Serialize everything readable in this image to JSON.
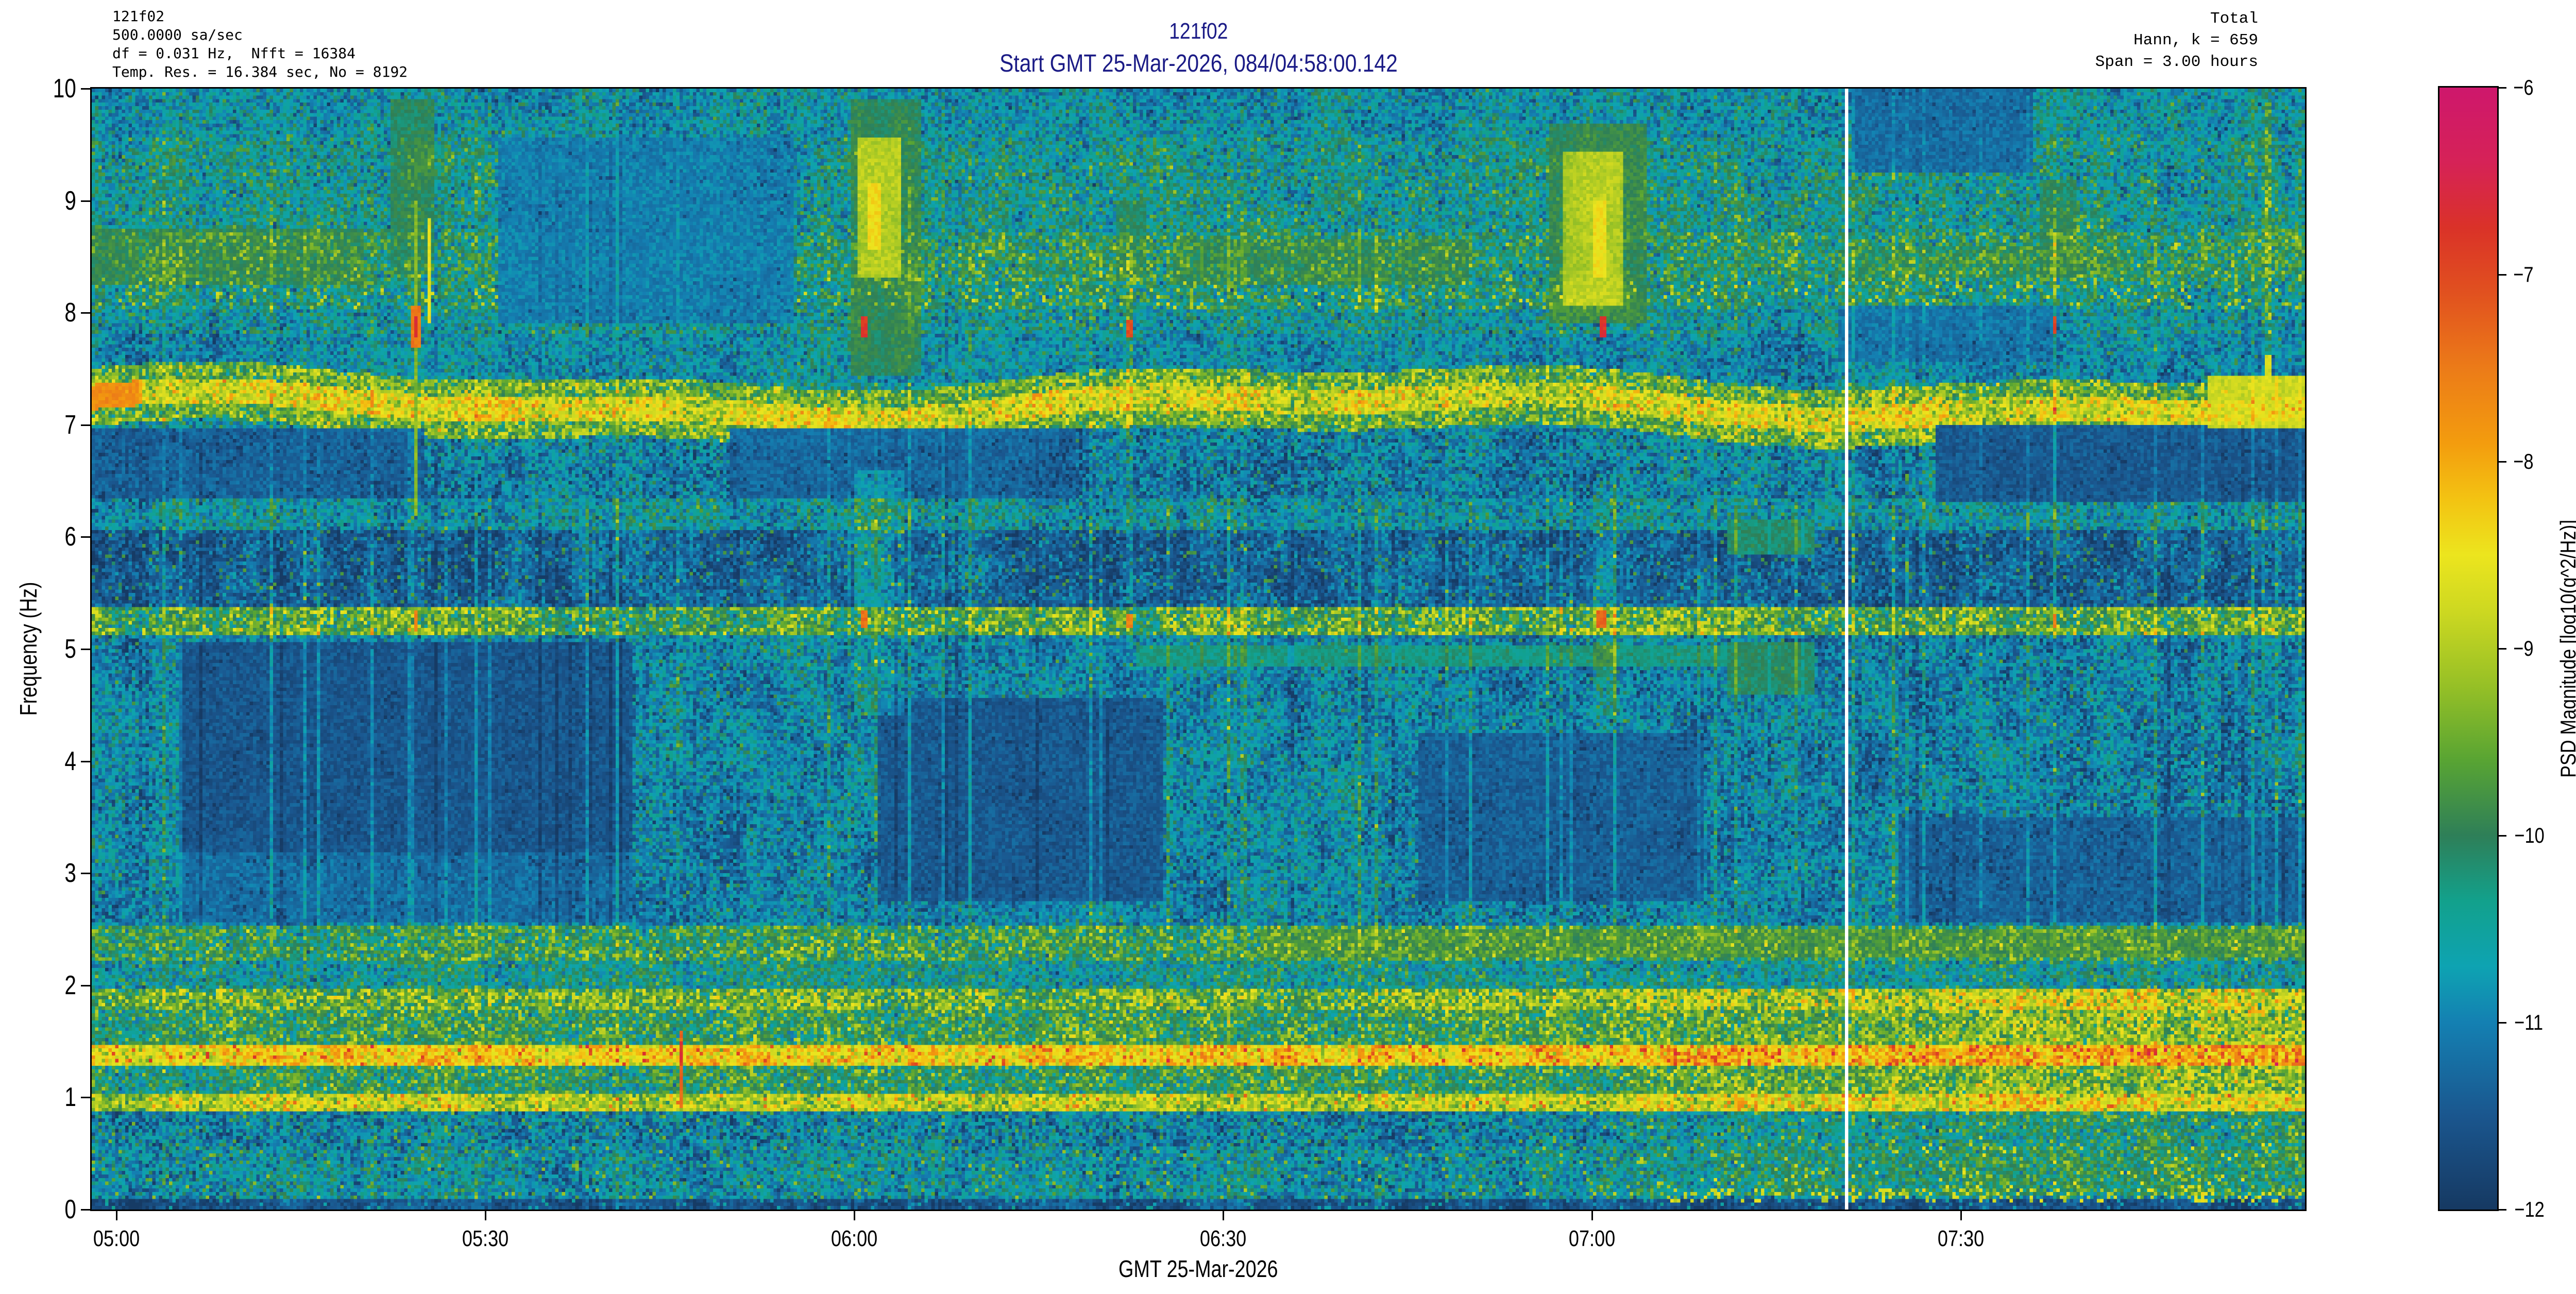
{
  "header_left": {
    "text": "121f02\n500.0000 sa/sec\ndf = 0.031 Hz,  Nfft = 16384\nTemp. Res. = 16.384 sec, No = 8192"
  },
  "header_right": {
    "text": "Total\nHann, k = 659\nSpan = 3.00 hours"
  },
  "title": {
    "line1": "121f02",
    "line2": "Start GMT 25-Mar-2026, 084/04:58:00.142",
    "color": "#1b1b86"
  },
  "axes": {
    "xlabel": "GMT 25-Mar-2026",
    "ylabel": "Frequency (Hz)",
    "x_ticks": [
      {
        "label": "05:00",
        "t": 2
      },
      {
        "label": "05:30",
        "t": 32
      },
      {
        "label": "06:00",
        "t": 62
      },
      {
        "label": "06:30",
        "t": 92
      },
      {
        "label": "07:00",
        "t": 122
      },
      {
        "label": "07:30",
        "t": 152
      }
    ],
    "y_ticks": [
      {
        "label": "0",
        "f": 0
      },
      {
        "label": "1",
        "f": 1
      },
      {
        "label": "2",
        "f": 2
      },
      {
        "label": "3",
        "f": 3
      },
      {
        "label": "4",
        "f": 4
      },
      {
        "label": "5",
        "f": 5
      },
      {
        "label": "6",
        "f": 6
      },
      {
        "label": "7",
        "f": 7
      },
      {
        "label": "8",
        "f": 8
      },
      {
        "label": "9",
        "f": 9
      },
      {
        "label": "10",
        "f": 10
      }
    ],
    "span_minutes": 180
  },
  "colorbar": {
    "label": "PSD Magnitude [log10(g^2/Hz)]",
    "vmin": -12,
    "vmax": -6,
    "ticks": [
      {
        "label": "−6",
        "v": -6
      },
      {
        "label": "−7",
        "v": -7
      },
      {
        "label": "−8",
        "v": -8
      },
      {
        "label": "−9",
        "v": -9
      },
      {
        "label": "−10",
        "v": -10
      },
      {
        "label": "−11",
        "v": -11
      },
      {
        "label": "−12",
        "v": -12
      }
    ],
    "stops": [
      [
        -12.0,
        "#163962"
      ],
      [
        -11.5,
        "#1a568e"
      ],
      [
        -11.0,
        "#1480b2"
      ],
      [
        -10.7,
        "#0ea3b2"
      ],
      [
        -10.35,
        "#12a18c"
      ],
      [
        -10.0,
        "#2e7f58"
      ],
      [
        -9.6,
        "#58a433"
      ],
      [
        -9.2,
        "#96c026"
      ],
      [
        -8.8,
        "#cdd821"
      ],
      [
        -8.5,
        "#ece51e"
      ],
      [
        -8.2,
        "#f3c312"
      ],
      [
        -7.9,
        "#f39c0e"
      ],
      [
        -7.5,
        "#ec7b18"
      ],
      [
        -7.1,
        "#e1511f"
      ],
      [
        -6.75,
        "#da3228"
      ],
      [
        -6.4,
        "#d62257"
      ],
      [
        -6.0,
        "#ce176c"
      ]
    ]
  },
  "chart_data": {
    "type": "heatmap",
    "title": "121f02",
    "subtitle": "Start GMT 25-Mar-2026, 084/04:58:00.142",
    "xlabel": "GMT 25-Mar-2026",
    "ylabel": "Frequency (Hz)",
    "x_start_gmt": "084/04:58:00.142",
    "x_span_hours": 3.0,
    "ylim": [
      0,
      10
    ],
    "clim": [
      -12,
      -6
    ],
    "colorbar_label": "PSD Magnitude [log10(g^2/Hz)]",
    "sample_rate_label": "500.0000 sa/sec",
    "df_hz": 0.031,
    "nfft": 16384,
    "temporal_res_sec": 16.384,
    "no_overlap": 8192,
    "window": "Hann",
    "k_averages": 659,
    "n_time_bins": 659,
    "n_freq_bins": 320,
    "gen": {
      "seed": 1337,
      "bands": [
        [
          0.0,
          0.1,
          -11.6,
          0.2,
          0.06,
          -10.6
        ],
        [
          0.1,
          0.55,
          -10.75,
          0.45,
          0.03,
          -9.4
        ],
        [
          0.55,
          0.86,
          -10.95,
          0.5,
          0.02,
          -9.6
        ],
        [
          0.86,
          1.03,
          -8.95,
          0.45,
          0.025,
          -7.5
        ],
        [
          1.03,
          1.27,
          -10.05,
          0.5,
          0.012,
          -9.0
        ],
        [
          1.27,
          1.47,
          -8.35,
          0.4,
          0.05,
          -6.95
        ],
        [
          1.47,
          1.77,
          -9.95,
          0.5,
          0.02,
          -9.0
        ],
        [
          1.77,
          1.98,
          -9.5,
          0.55,
          0.05,
          -8.7
        ],
        [
          1.98,
          2.22,
          -10.45,
          0.45,
          0.012,
          -9.5
        ],
        [
          2.22,
          2.52,
          -9.95,
          0.5,
          0.03,
          -9.2
        ],
        [
          2.52,
          5.12,
          -10.95,
          0.4,
          0.012,
          -9.8
        ],
        [
          5.12,
          5.38,
          -9.45,
          0.5,
          0.06,
          -8.4
        ],
        [
          5.38,
          6.06,
          -11.35,
          0.32,
          0.045,
          -9.9
        ],
        [
          6.06,
          6.33,
          -10.65,
          0.42,
          0.02,
          -9.9
        ],
        [
          6.33,
          6.98,
          -11.0,
          0.45,
          0.012,
          -10.0
        ],
        [
          6.98,
          7.38,
          -10.55,
          0.45,
          0.02,
          -9.7
        ],
        [
          7.38,
          7.8,
          -10.85,
          0.38,
          0.012,
          -9.9
        ],
        [
          7.8,
          8.02,
          -10.6,
          0.45,
          0.02,
          -9.8
        ],
        [
          8.02,
          8.28,
          -10.3,
          0.5,
          0.045,
          -8.9
        ],
        [
          8.28,
          8.72,
          -10.15,
          0.5,
          0.06,
          -9.6
        ],
        [
          8.72,
          9.55,
          -10.5,
          0.45,
          0.05,
          -9.8
        ],
        [
          9.55,
          10.01,
          -10.75,
          0.4,
          0.02,
          -10.0
        ]
      ],
      "seven_band": {
        "fc": 7.17,
        "a1": 0.09,
        "p1": 95,
        "ph": 15,
        "a2": 0.05,
        "p2": 37,
        "hc": 0.11,
        "hf": 0.26,
        "core": -8.6,
        "cs": 0.45,
        "fringe": -9.5,
        "fs": 0.5,
        "orange_t": 4,
        "orange_v": -7.7
      },
      "blocks": [
        {
          "t0": 7,
          "t1": 44,
          "f0": 3.2,
          "f1": 5.05,
          "m": "min",
          "v": -11.5
        },
        {
          "t0": 7,
          "t1": 44,
          "f0": 2.55,
          "f1": 3.2,
          "m": "min",
          "v": -11.15
        },
        {
          "t0": 64,
          "t1": 87,
          "f0": 2.75,
          "f1": 4.55,
          "m": "min",
          "v": -11.45
        },
        {
          "t0": 108,
          "t1": 131,
          "f0": 2.75,
          "f1": 4.25,
          "m": "min",
          "v": -11.35
        },
        {
          "t0": 147,
          "t1": 180,
          "f0": 2.55,
          "f1": 3.5,
          "m": "min",
          "v": -11.3
        },
        {
          "t0": 33,
          "t1": 57,
          "f0": 7.9,
          "f1": 9.55,
          "m": "min",
          "v": -11.0
        },
        {
          "t0": 150,
          "t1": 180,
          "f0": 6.3,
          "f1": 7.0,
          "m": "min",
          "v": -11.45
        },
        {
          "t0": 0,
          "t1": 27,
          "f0": 6.33,
          "f1": 6.98,
          "m": "min",
          "v": -11.3
        },
        {
          "t0": 52,
          "t1": 80,
          "f0": 6.33,
          "f1": 6.98,
          "m": "min",
          "v": -11.25
        },
        {
          "t0": 143,
          "t1": 158,
          "f0": 9.25,
          "f1": 10.0,
          "m": "min",
          "v": -11.2
        },
        {
          "t0": 142,
          "t1": 160,
          "f0": 7.55,
          "f1": 8.05,
          "m": "min",
          "v": -11.1
        },
        {
          "t0": 0,
          "t1": 22,
          "f0": 8.25,
          "f1": 8.75,
          "m": "max",
          "v": -10.0
        },
        {
          "t0": 88,
          "t1": 112,
          "f0": 8.25,
          "f1": 8.65,
          "m": "max",
          "v": -10.05
        },
        {
          "t0": 142,
          "t1": 166,
          "f0": 8.3,
          "f1": 8.6,
          "m": "max",
          "v": -10.2
        },
        {
          "t0": 85,
          "t1": 135,
          "f0": 4.85,
          "f1": 5.02,
          "m": "max",
          "v": -10.3
        },
        {
          "t0": 95,
          "t1": 180,
          "f0": 2.24,
          "f1": 2.5,
          "m": "max",
          "v": -9.85
        },
        {
          "t0": 133,
          "t1": 140,
          "f0": 4.6,
          "f1": 5.05,
          "m": "max",
          "v": -10.1
        },
        {
          "t0": 133,
          "t1": 140,
          "f0": 5.85,
          "f1": 6.15,
          "m": "max",
          "v": -10.15
        },
        {
          "t0": 172,
          "t1": 180,
          "f0": 6.98,
          "f1": 7.45,
          "m": "max",
          "v": -8.8
        }
      ],
      "events": [
        {
          "name": "burst-0524",
          "parts": [
            {
              "m": "max",
              "t0": 24.3,
              "t1": 27.8,
              "f0": 8.35,
              "f1": 9.9,
              "v": -10.0
            },
            {
              "m": "set",
              "t0": 26.2,
              "t1": 26.6,
              "f0": 6.2,
              "f1": 9.0,
              "v": -9.3
            },
            {
              "m": "set",
              "t0": 27.3,
              "t1": 27.7,
              "f0": 7.9,
              "f1": 8.85,
              "v": -8.55
            },
            {
              "m": "set",
              "t0": 26.0,
              "t1": 26.9,
              "f0": 7.7,
              "f1": 8.05,
              "v": -7.5
            },
            {
              "m": "set",
              "t0": 26.2,
              "t1": 26.6,
              "f0": 7.78,
              "f1": 7.97,
              "v": -6.7
            },
            {
              "m": "set",
              "t0": 26.2,
              "t1": 26.6,
              "f0": 5.15,
              "f1": 5.35,
              "v": -7.6
            }
          ]
        },
        {
          "name": "burst-0600",
          "parts": [
            {
              "m": "max",
              "t0": 61.8,
              "t1": 67.5,
              "f0": 7.45,
              "f1": 9.9,
              "v": -10.0
            },
            {
              "m": "max",
              "t0": 62.2,
              "t1": 65.8,
              "f0": 8.3,
              "f1": 9.55,
              "v": -9.0
            },
            {
              "m": "set",
              "t0": 63.0,
              "t1": 64.2,
              "f0": 8.55,
              "f1": 9.15,
              "v": -8.4
            },
            {
              "m": "add",
              "t0": 62.0,
              "t1": 66.0,
              "f0": 4.4,
              "f1": 6.6,
              "v": 0.55
            },
            {
              "m": "set",
              "t0": 62.6,
              "t1": 63.1,
              "f0": 7.78,
              "f1": 7.97,
              "v": -6.8
            },
            {
              "m": "set",
              "t0": 62.5,
              "t1": 63.2,
              "f0": 5.18,
              "f1": 5.34,
              "v": -7.4
            }
          ]
        },
        {
          "name": "burst-0622",
          "parts": [
            {
              "m": "add",
              "t0": 84.1,
              "t1": 84.6,
              "f0": 5.4,
              "f1": 8.8,
              "v": 0.6
            },
            {
              "m": "max",
              "t0": 83.2,
              "t1": 85.8,
              "f0": 8.3,
              "f1": 9.0,
              "v": -10.1
            },
            {
              "m": "set",
              "t0": 84.1,
              "t1": 84.6,
              "f0": 7.78,
              "f1": 7.95,
              "v": -7.1
            },
            {
              "m": "set",
              "t0": 84.1,
              "t1": 84.6,
              "f0": 5.18,
              "f1": 5.32,
              "v": -7.6
            }
          ]
        },
        {
          "name": "burst-0700",
          "parts": [
            {
              "m": "max",
              "t0": 118.5,
              "t1": 126.5,
              "f0": 7.9,
              "f1": 9.7,
              "v": -9.9
            },
            {
              "m": "max",
              "t0": 119.5,
              "t1": 124.5,
              "f0": 8.05,
              "f1": 9.45,
              "v": -9.0
            },
            {
              "m": "set",
              "t0": 122.0,
              "t1": 123.3,
              "f0": 8.3,
              "f1": 9.0,
              "v": -8.45
            },
            {
              "m": "add",
              "t0": 122.0,
              "t1": 124.0,
              "f0": 4.4,
              "f1": 6.5,
              "v": 0.45
            },
            {
              "m": "set",
              "t0": 122.6,
              "t1": 123.1,
              "f0": 7.78,
              "f1": 7.97,
              "v": -6.75
            },
            {
              "m": "set",
              "t0": 122.5,
              "t1": 123.2,
              "f0": 5.18,
              "f1": 5.34,
              "v": -7.3
            }
          ]
        },
        {
          "name": "burst-0737",
          "parts": [
            {
              "m": "add",
              "t0": 159.4,
              "t1": 159.9,
              "f0": 5.4,
              "f1": 9.0,
              "v": 0.55
            },
            {
              "m": "max",
              "t0": 158.3,
              "t1": 161.5,
              "f0": 8.3,
              "f1": 9.2,
              "v": -10.1
            },
            {
              "m": "set",
              "t0": 159.4,
              "t1": 159.9,
              "f0": 7.8,
              "f1": 7.96,
              "v": -6.9
            },
            {
              "m": "set",
              "t0": 159.4,
              "t1": 159.9,
              "f0": 5.18,
              "f1": 5.3,
              "v": -7.5
            }
          ]
        },
        {
          "name": "burst-0755",
          "parts": [
            {
              "m": "add",
              "t0": 176.7,
              "t1": 177.3,
              "f0": 7.4,
              "f1": 9.9,
              "v": 0.8
            },
            {
              "m": "set",
              "t0": 176.6,
              "t1": 177.4,
              "f0": 7.3,
              "f1": 7.62,
              "v": -8.7
            }
          ]
        },
        {
          "name": "redline-0546",
          "parts": [
            {
              "m": "set",
              "t0": 47.75,
              "t1": 48.05,
              "f0": 0.92,
              "f1": 1.6,
              "v": -7.3
            },
            {
              "m": "set",
              "t0": 47.75,
              "t1": 48.05,
              "f0": 1.27,
              "f1": 1.5,
              "v": -6.8
            }
          ]
        }
      ],
      "striations": {
        "p_bright": 0.05,
        "amp_bright": 0.55,
        "p_dark": 0.05,
        "amp_dark": -0.32,
        "strong_t": [
          14.5,
          59.8,
          66.5,
          71.2,
          92.3,
          118.2,
          146.4,
          167.8,
          171.5,
          175.5
        ],
        "strong_amp": 0.8
      },
      "low_boost": {
        "t0": 100,
        "t1": 165,
        "amp_bg": 0.75,
        "amp_hot": 0.3,
        "extra": [
          {
            "f0": 1.27,
            "f1": 1.47,
            "t0": 128,
            "p": 0.1,
            "v": -7.1
          },
          {
            "f0": 0.86,
            "f1": 1.03,
            "t0": 128,
            "p": 0.05,
            "v": -7.8
          },
          {
            "f0": 0.06,
            "f1": 0.2,
            "t0": 128,
            "p": 0.2,
            "v": -8.8
          }
        ]
      },
      "gap": {
        "t": 142.7,
        "cols": 1,
        "color": "#ffffff"
      }
    }
  }
}
